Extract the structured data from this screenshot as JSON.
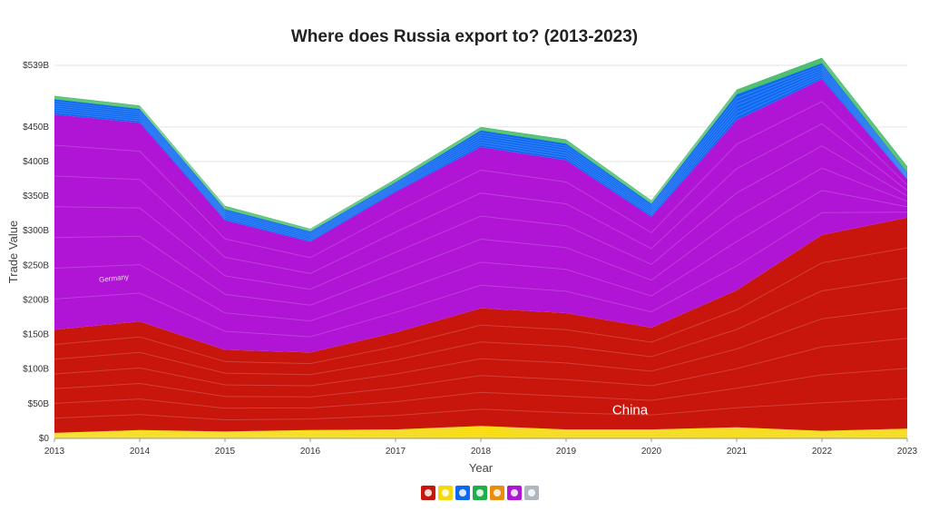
{
  "chart_data": {
    "type": "area",
    "title": "Where does Russia export to? (2013-2023)",
    "xlabel": "Year",
    "ylabel": "Trade Value",
    "x": [
      "2013",
      "2014",
      "2015",
      "2016",
      "2017",
      "2018",
      "2019",
      "2020",
      "2021",
      "2022",
      "2023"
    ],
    "ylim": [
      0,
      539
    ],
    "y_ticks": [
      "$0",
      "$50B",
      "$100B",
      "$150B",
      "$200B",
      "$250B",
      "$300B",
      "$350B",
      "$400B",
      "$450B",
      "$539B"
    ],
    "y_tick_values": [
      0,
      50,
      100,
      150,
      200,
      250,
      300,
      350,
      400,
      450,
      539
    ],
    "stacked": true,
    "grid": true,
    "series": [
      {
        "key": "africa",
        "color": "#f5d90a",
        "values": [
          8,
          12,
          10,
          12,
          13,
          18,
          13,
          13,
          16,
          11,
          14
        ]
      },
      {
        "key": "asia",
        "color": "#c8160c",
        "values": [
          149,
          157,
          118,
          112,
          140,
          170,
          168,
          147,
          198,
          283,
          305
        ]
      },
      {
        "key": "europe",
        "color": "#b014d4",
        "values": [
          311,
          287,
          187,
          160,
          203,
          233,
          221,
          160,
          246,
          225,
          55
        ]
      },
      {
        "key": "americas",
        "color": "#0d68f2",
        "values": [
          22,
          20,
          16,
          15,
          14,
          24,
          24,
          19,
          37,
          23,
          10
        ]
      },
      {
        "key": "oceania",
        "color": "#1fae4a",
        "values": [
          5,
          5,
          5,
          4,
          5,
          5,
          6,
          5,
          7,
          8,
          9
        ]
      }
    ],
    "annotations": [
      {
        "text": "China"
      },
      {
        "text": "Germany"
      }
    ],
    "legend": "bottom-center"
  },
  "legend_icons": [
    {
      "icon": "asia-continent-icon",
      "color": "#c8160c"
    },
    {
      "icon": "africa-continent-icon",
      "color": "#f5d90a"
    },
    {
      "icon": "europe-continent-icon",
      "color": "#0d68f2"
    },
    {
      "icon": "americas-continent-icon",
      "color": "#1fae4a"
    },
    {
      "icon": "oceania-continent-icon",
      "color": "#f08a0a"
    },
    {
      "icon": "europe-alt-icon",
      "color": "#b014d4"
    },
    {
      "icon": "other-region-icon",
      "color": "#aeb6c2"
    }
  ]
}
